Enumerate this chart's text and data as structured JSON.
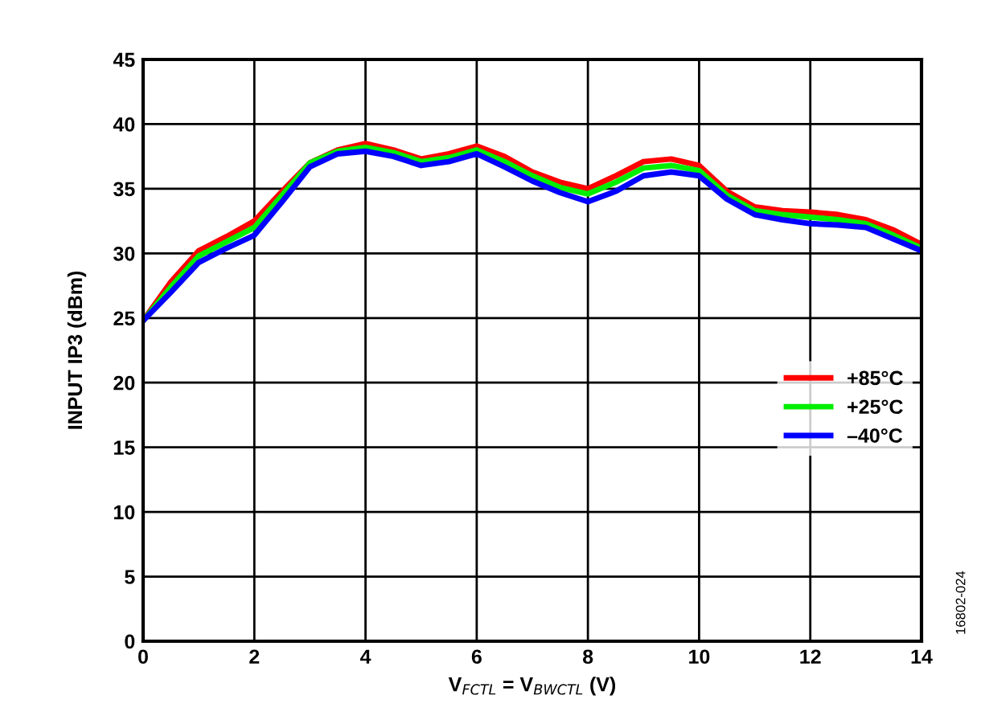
{
  "chart_data": {
    "type": "line",
    "xlabel": "V$_{FCTL}$ = V$_{BWCTL}$ (V)",
    "ylabel": "INPUT IP3 (dBm)",
    "x": [
      0,
      0.5,
      1,
      1.5,
      2,
      2.5,
      3,
      3.5,
      4,
      4.5,
      5,
      5.5,
      6,
      6.5,
      7,
      7.5,
      8,
      8.5,
      9,
      9.5,
      10,
      10.5,
      11,
      11.5,
      12,
      12.5,
      13,
      13.5,
      14
    ],
    "series": [
      {
        "name": "+85°C",
        "color": "#ff0000",
        "values": [
          24.8,
          27.8,
          30.2,
          31.3,
          32.5,
          34.8,
          37.0,
          38.0,
          38.5,
          38.0,
          37.3,
          37.7,
          38.3,
          37.5,
          36.3,
          35.5,
          35.0,
          36.0,
          37.1,
          37.3,
          36.8,
          34.8,
          33.6,
          33.3,
          33.2,
          33.0,
          32.6,
          31.8,
          30.7
        ]
      },
      {
        "name": "+25°C",
        "color": "#00ee00",
        "values": [
          24.8,
          27.4,
          29.8,
          30.9,
          32.0,
          34.5,
          37.0,
          37.9,
          38.2,
          37.8,
          37.1,
          37.4,
          38.0,
          37.1,
          36.0,
          35.1,
          34.6,
          35.5,
          36.6,
          36.8,
          36.4,
          34.5,
          33.3,
          33.0,
          32.8,
          32.6,
          32.3,
          31.4,
          30.4
        ]
      },
      {
        "name": "–40°C",
        "color": "#0000ff",
        "values": [
          24.8,
          27.0,
          29.3,
          30.4,
          31.4,
          34.0,
          36.7,
          37.7,
          37.9,
          37.5,
          36.8,
          37.1,
          37.7,
          36.7,
          35.6,
          34.7,
          34.0,
          34.8,
          36.0,
          36.3,
          36.0,
          34.2,
          33.0,
          32.6,
          32.3,
          32.2,
          32.0,
          31.1,
          30.2
        ]
      }
    ],
    "xlim": [
      0,
      14
    ],
    "xticks": [
      0,
      2,
      4,
      6,
      8,
      10,
      12,
      14
    ],
    "ylim": [
      0,
      45
    ],
    "yticks": [
      0,
      5,
      10,
      15,
      20,
      25,
      30,
      35,
      40,
      45
    ],
    "grid": true,
    "legend": "center right",
    "marker": "none",
    "line_style": "solid",
    "annotations": [
      "16802-024"
    ]
  }
}
